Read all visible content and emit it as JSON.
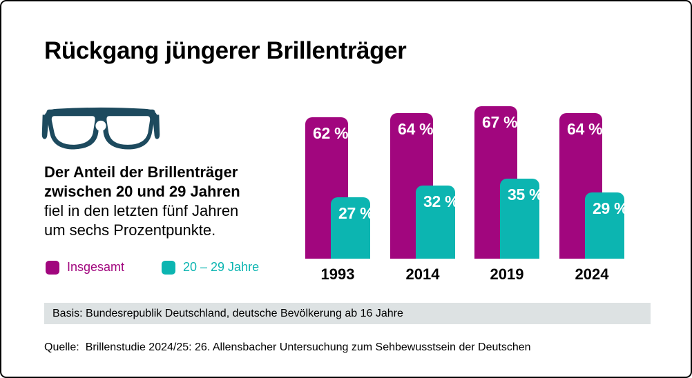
{
  "title": "Rückgang jüngerer Brillenträger",
  "intro": {
    "bold_line1": "Der Anteil der Brillenträger",
    "bold_line2": "zwischen 20 und 29 Jahren",
    "line3": "fiel in den letzten fünf Jahren",
    "line4": "um sechs Prozentpunkte."
  },
  "chart_data": {
    "type": "bar",
    "title": "Rückgang jüngerer Brillenträger",
    "categories": [
      "1993",
      "2014",
      "2019",
      "2024"
    ],
    "series": [
      {
        "name": "Insgesamt",
        "color": "#a1067e",
        "values": [
          62,
          64,
          67,
          64
        ],
        "labels": [
          "62 %",
          "64 %",
          "67 %",
          "64 %"
        ]
      },
      {
        "name": "20 – 29 Jahre",
        "color": "#0cb5b1",
        "values": [
          27,
          32,
          35,
          29
        ],
        "labels": [
          "27 %",
          "32 %",
          "35 %",
          "29 %"
        ]
      }
    ],
    "unit": "%",
    "ylim": [
      0,
      100
    ],
    "grid": false,
    "axes_visible": false,
    "legend_position": "bottom-left",
    "value_labels": "inside-top"
  },
  "basis": {
    "text": "Basis: Bundesrepublik Deutschland, deutsche Bevölkerung ab 16 Jahre"
  },
  "quelle": {
    "label": "Quelle:",
    "text": "Brillenstudie 2024/25: 26. Allensbacher Untersuchung zum Sehbewusstsein der Deutschen"
  },
  "icons": {
    "glasses": "glasses-icon"
  },
  "colors": {
    "magenta": "#a1067e",
    "teal": "#0cb5b1",
    "glasses": "#1d4a5e",
    "basis_bg": "#dde2e3",
    "text": "#000000"
  }
}
